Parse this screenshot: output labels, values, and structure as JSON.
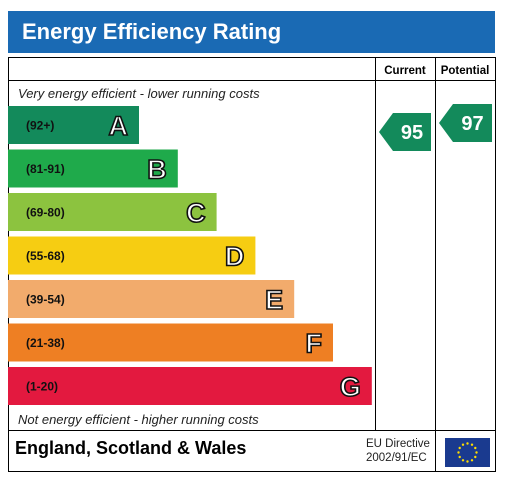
{
  "header": {
    "title": "Energy Efficiency Rating"
  },
  "columns": {
    "current": "Current",
    "potential": "Potential"
  },
  "notes": {
    "top": "Very energy efficient - lower running costs",
    "bottom": "Not energy efficient - higher running costs"
  },
  "footer": {
    "region": "England, Scotland & Wales",
    "directive_line1": "EU Directive",
    "directive_line2": "2002/91/EC",
    "flag_icon": "eu-flag-icon"
  },
  "chart_data": {
    "type": "bar",
    "bands": [
      {
        "range": "(92+)",
        "letter": "A",
        "color": "#138a5b"
      },
      {
        "range": "(81-91)",
        "letter": "B",
        "color": "#1faa4b"
      },
      {
        "range": "(69-80)",
        "letter": "C",
        "color": "#8cc33f"
      },
      {
        "range": "(55-68)",
        "letter": "D",
        "color": "#f6cd12"
      },
      {
        "range": "(39-54)",
        "letter": "E",
        "color": "#f2ab6c"
      },
      {
        "range": "(21-38)",
        "letter": "F",
        "color": "#ee7f23"
      },
      {
        "range": "(1-20)",
        "letter": "G",
        "color": "#e3193f"
      }
    ],
    "current": {
      "value": 95,
      "band": "A",
      "color": "#138a5b"
    },
    "potential": {
      "value": 97,
      "band": "A",
      "color": "#138a5b"
    }
  }
}
